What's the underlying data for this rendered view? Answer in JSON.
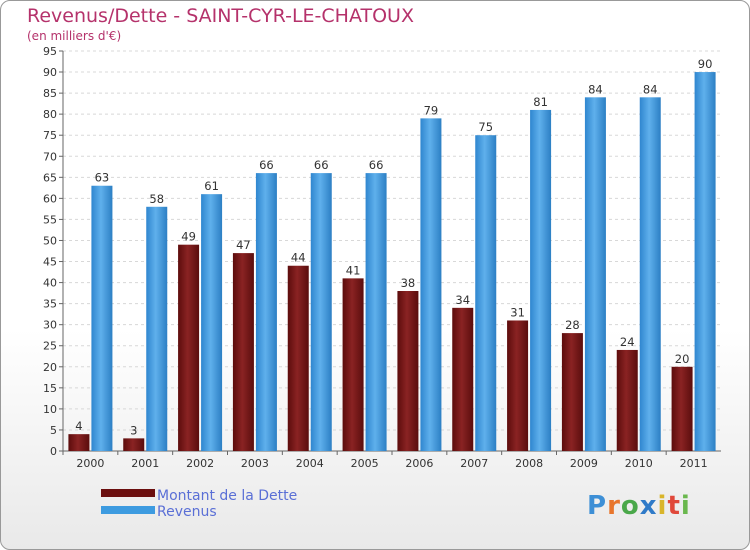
{
  "title": "Revenus/Dette - SAINT-CYR-LE-CHATOUX",
  "subtitle": "(en milliers d'€)",
  "logo": "Proxiti",
  "colors": {
    "dette": "#7a1616",
    "revenus": "#3d9be0",
    "title": "#b5326b"
  },
  "chart_data": {
    "type": "bar",
    "categories": [
      "2000",
      "2001",
      "2002",
      "2003",
      "2004",
      "2005",
      "2006",
      "2007",
      "2008",
      "2009",
      "2010",
      "2011"
    ],
    "series": [
      {
        "name": "Montant de la Dette",
        "values": [
          4,
          3,
          49,
          47,
          44,
          41,
          38,
          34,
          31,
          28,
          24,
          20
        ]
      },
      {
        "name": "Revenus",
        "values": [
          63,
          58,
          61,
          66,
          66,
          66,
          79,
          75,
          81,
          84,
          84,
          90
        ]
      }
    ],
    "ylim": [
      0,
      95
    ],
    "yticks": [
      0,
      5,
      10,
      15,
      20,
      25,
      30,
      35,
      40,
      45,
      50,
      55,
      60,
      65,
      70,
      75,
      80,
      85,
      90,
      95
    ],
    "grid": true,
    "legend": "bottom-left"
  }
}
